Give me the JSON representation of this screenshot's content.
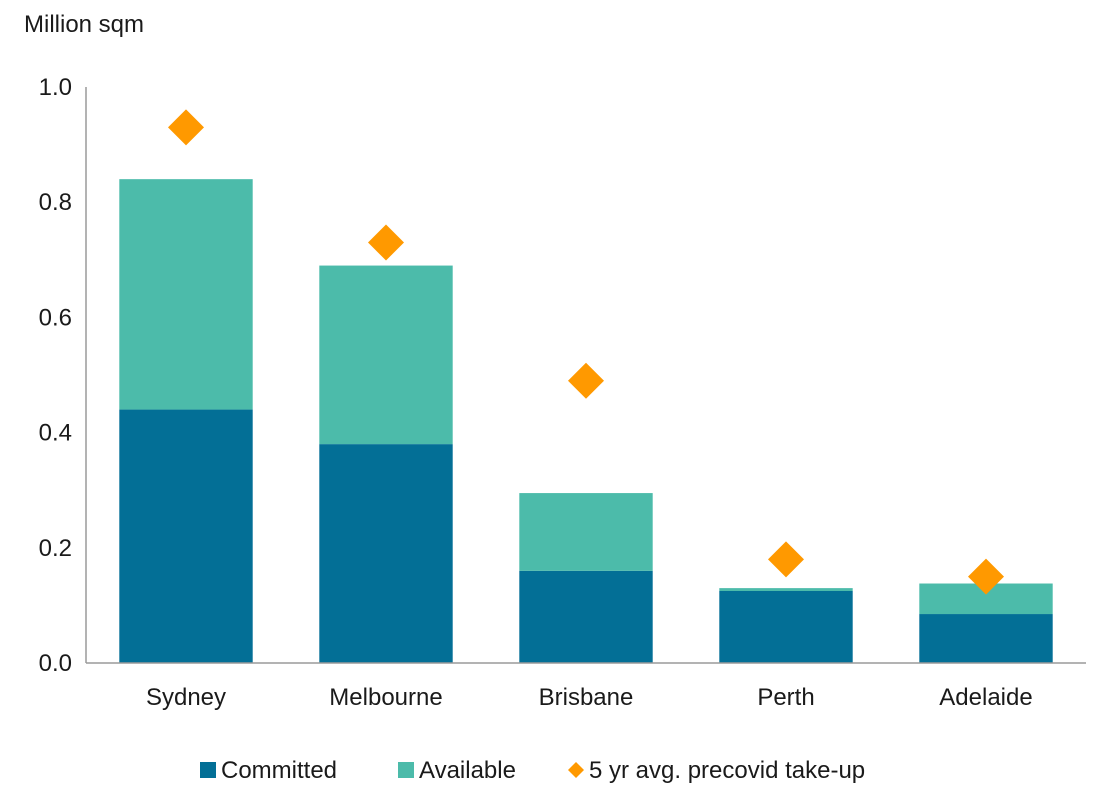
{
  "chart_data": {
    "type": "bar",
    "stacked": true,
    "ylabel": "Million sqm",
    "xlabel": "",
    "ylim": [
      0,
      1.0
    ],
    "yticks": [
      "0.0",
      "0.2",
      "0.4",
      "0.6",
      "0.8",
      "1.0"
    ],
    "ytick_values": [
      0,
      0.2,
      0.4,
      0.6,
      0.8,
      1.0
    ],
    "grid": false,
    "categories": [
      "Sydney",
      "Melbourne",
      "Brisbane",
      "Perth",
      "Adelaide"
    ],
    "series": [
      {
        "name": "Committed",
        "type": "bar",
        "color": "#036F96",
        "values": [
          0.44,
          0.38,
          0.16,
          0.125,
          0.085
        ]
      },
      {
        "name": "Available",
        "type": "bar",
        "color": "#4CBBAA",
        "values": [
          0.4,
          0.31,
          0.135,
          0.005,
          0.053
        ]
      },
      {
        "name": "5 yr avg. precovid take-up",
        "type": "scatter",
        "marker": "diamond",
        "color": "#FF9900",
        "values": [
          0.93,
          0.73,
          0.49,
          0.18,
          0.15
        ]
      }
    ],
    "legend_position": "bottom"
  }
}
